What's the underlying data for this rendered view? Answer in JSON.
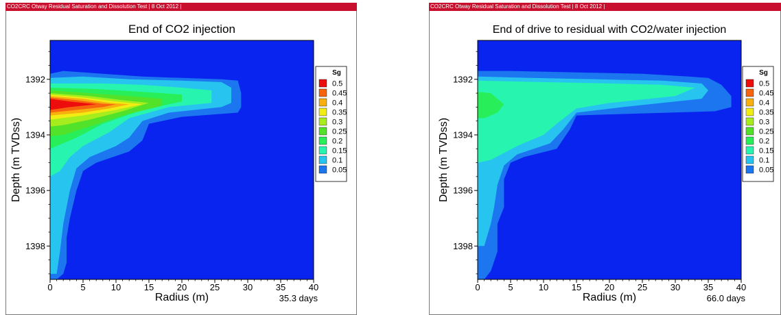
{
  "colors": {
    "header_bar": "#c8102e",
    "background_fill": "#0a24ef",
    "legend_colors": [
      "#ee0d0d",
      "#f76410",
      "#f7b00e",
      "#f1ec14",
      "#a7ec1c",
      "#52e22a",
      "#28ef59",
      "#27f4ae",
      "#28c4f0",
      "#1b76f0",
      "#0a24ef"
    ]
  },
  "panels": [
    {
      "id": "left",
      "header": "CO2CRC Otway Residual Saturation and Dissolution Test | 8 Oct 2012 |",
      "timestamp": "35.3 days"
    },
    {
      "id": "right",
      "header": "CO2CRC Otway Residual Saturation and Dissolution Test | 8 Oct 2012 |",
      "timestamp": "66.0 days"
    }
  ],
  "chart_data": [
    {
      "type": "heatmap",
      "title": "End of CO2 injection",
      "xlabel": "Radius (m)",
      "ylabel": "Depth (m TVDss)",
      "xlim": [
        0,
        40
      ],
      "ylim": [
        1399.2,
        1390.6
      ],
      "x_ticks": [
        0,
        5,
        10,
        15,
        20,
        25,
        30,
        35,
        40
      ],
      "y_ticks": [
        1392,
        1394,
        1396,
        1398
      ],
      "legend_title": "Sg",
      "legend_levels": [
        0.5,
        0.45,
        0.4,
        0.35,
        0.3,
        0.25,
        0.2,
        0.15,
        0.1,
        0.05
      ],
      "grid": false,
      "legend_placement": "right",
      "contours": [
        {
          "level": 0.05,
          "points": [
            [
              0,
              1391.8
            ],
            [
              2,
              1391.7
            ],
            [
              8,
              1391.8
            ],
            [
              14,
              1391.9
            ],
            [
              20,
              1391.95
            ],
            [
              26,
              1392.0
            ],
            [
              28.5,
              1392.05
            ],
            [
              29,
              1392.5
            ],
            [
              29,
              1393.0
            ],
            [
              28.5,
              1393.2
            ],
            [
              20,
              1393.35
            ],
            [
              15,
              1393.6
            ],
            [
              14,
              1394.2
            ],
            [
              12,
              1394.6
            ],
            [
              7,
              1395.0
            ],
            [
              5,
              1395.3
            ],
            [
              4,
              1396.0
            ],
            [
              3,
              1397.0
            ],
            [
              2.5,
              1397.7
            ],
            [
              2.5,
              1398.6
            ],
            [
              2,
              1399.0
            ],
            [
              1,
              1399.2
            ],
            [
              0,
              1399.2
            ]
          ]
        },
        {
          "level": 0.1,
          "points": [
            [
              0,
              1391.95
            ],
            [
              5,
              1391.9
            ],
            [
              12,
              1392.0
            ],
            [
              20,
              1392.05
            ],
            [
              26,
              1392.1
            ],
            [
              27.5,
              1392.3
            ],
            [
              27.5,
              1392.85
            ],
            [
              26,
              1393.0
            ],
            [
              18,
              1393.2
            ],
            [
              14,
              1393.5
            ],
            [
              12,
              1394.1
            ],
            [
              10,
              1394.4
            ],
            [
              6,
              1394.8
            ],
            [
              4,
              1395.2
            ],
            [
              3,
              1396.0
            ],
            [
              2,
              1397.2
            ],
            [
              1.5,
              1398.2
            ],
            [
              1,
              1399.0
            ],
            [
              0,
              1399.0
            ]
          ]
        },
        {
          "level": 0.15,
          "points": [
            [
              0,
              1392.15
            ],
            [
              8,
              1392.15
            ],
            [
              14,
              1392.2
            ],
            [
              20,
              1392.3
            ],
            [
              24.5,
              1392.4
            ],
            [
              24.5,
              1392.85
            ],
            [
              18,
              1393.0
            ],
            [
              12,
              1393.4
            ],
            [
              9,
              1393.9
            ],
            [
              5,
              1394.4
            ],
            [
              3,
              1394.8
            ],
            [
              1.5,
              1395.3
            ],
            [
              0,
              1395.5
            ]
          ]
        },
        {
          "level": 0.2,
          "points": [
            [
              0,
              1392.3
            ],
            [
              7,
              1392.35
            ],
            [
              14,
              1392.45
            ],
            [
              20,
              1392.55
            ],
            [
              20,
              1392.8
            ],
            [
              14,
              1393.1
            ],
            [
              8,
              1393.6
            ],
            [
              4,
              1394.1
            ],
            [
              1,
              1394.4
            ],
            [
              0,
              1394.5
            ]
          ]
        },
        {
          "level": 0.25,
          "points": [
            [
              0,
              1392.4
            ],
            [
              6,
              1392.5
            ],
            [
              12,
              1392.6
            ],
            [
              17,
              1392.7
            ],
            [
              17,
              1392.95
            ],
            [
              11,
              1393.3
            ],
            [
              6,
              1393.7
            ],
            [
              2,
              1394.0
            ],
            [
              0,
              1394.05
            ]
          ]
        },
        {
          "level": 0.3,
          "points": [
            [
              0,
              1392.5
            ],
            [
              6,
              1392.6
            ],
            [
              11,
              1392.75
            ],
            [
              15,
              1392.85
            ],
            [
              11,
              1393.15
            ],
            [
              6,
              1393.45
            ],
            [
              2,
              1393.65
            ],
            [
              0,
              1393.7
            ]
          ]
        },
        {
          "level": 0.35,
          "points": [
            [
              0,
              1392.55
            ],
            [
              5,
              1392.65
            ],
            [
              10,
              1392.8
            ],
            [
              14,
              1392.9
            ],
            [
              10,
              1393.1
            ],
            [
              5,
              1393.3
            ],
            [
              0,
              1393.45
            ]
          ]
        },
        {
          "level": 0.4,
          "points": [
            [
              0,
              1392.6
            ],
            [
              5,
              1392.7
            ],
            [
              9,
              1392.85
            ],
            [
              12,
              1392.9
            ],
            [
              9,
              1393.05
            ],
            [
              5,
              1393.2
            ],
            [
              0,
              1393.3
            ]
          ]
        },
        {
          "level": 0.45,
          "points": [
            [
              0,
              1392.65
            ],
            [
              4,
              1392.75
            ],
            [
              8,
              1392.88
            ],
            [
              10,
              1392.9
            ],
            [
              8,
              1393.0
            ],
            [
              4,
              1393.1
            ],
            [
              0,
              1393.2
            ]
          ]
        },
        {
          "level": 0.5,
          "points": [
            [
              0,
              1392.7
            ],
            [
              3,
              1392.8
            ],
            [
              7,
              1392.9
            ],
            [
              3,
              1393.0
            ],
            [
              0,
              1393.1
            ]
          ]
        }
      ]
    },
    {
      "type": "heatmap",
      "title": "End of drive to residual with CO2/water injection",
      "xlabel": "Radius (m)",
      "ylabel": "Depth (m TVDss)",
      "xlim": [
        0,
        40
      ],
      "ylim": [
        1399.2,
        1390.6
      ],
      "x_ticks": [
        0,
        5,
        10,
        15,
        20,
        25,
        30,
        35,
        40
      ],
      "y_ticks": [
        1392,
        1394,
        1396,
        1398
      ],
      "legend_title": "Sg",
      "legend_levels": [
        0.5,
        0.45,
        0.4,
        0.35,
        0.3,
        0.25,
        0.2,
        0.15,
        0.1,
        0.05
      ],
      "grid": false,
      "legend_placement": "right",
      "contours": [
        {
          "level": 0.05,
          "points": [
            [
              0,
              1391.7
            ],
            [
              5,
              1391.7
            ],
            [
              15,
              1391.75
            ],
            [
              25,
              1391.8
            ],
            [
              32,
              1391.9
            ],
            [
              35,
              1391.95
            ],
            [
              37,
              1392.2
            ],
            [
              38.5,
              1392.6
            ],
            [
              38.5,
              1393.0
            ],
            [
              36,
              1393.15
            ],
            [
              22,
              1393.25
            ],
            [
              15,
              1393.3
            ],
            [
              14,
              1393.8
            ],
            [
              12,
              1394.5
            ],
            [
              7,
              1394.8
            ],
            [
              5,
              1395.0
            ],
            [
              4,
              1395.6
            ],
            [
              4,
              1396.6
            ],
            [
              3,
              1397.2
            ],
            [
              3,
              1398.2
            ],
            [
              2,
              1398.9
            ],
            [
              1,
              1399.2
            ],
            [
              0,
              1399.2
            ]
          ]
        },
        {
          "level": 0.1,
          "points": [
            [
              0,
              1391.9
            ],
            [
              8,
              1391.95
            ],
            [
              18,
              1392.0
            ],
            [
              28,
              1392.05
            ],
            [
              34,
              1392.15
            ],
            [
              35,
              1392.4
            ],
            [
              34,
              1392.7
            ],
            [
              22,
              1393.0
            ],
            [
              15,
              1393.2
            ],
            [
              13,
              1393.8
            ],
            [
              11,
              1394.3
            ],
            [
              6,
              1394.7
            ],
            [
              4,
              1395.1
            ],
            [
              3,
              1395.8
            ],
            [
              2.5,
              1396.6
            ],
            [
              2,
              1397.2
            ],
            [
              1,
              1398.0
            ],
            [
              0,
              1398.0
            ]
          ]
        },
        {
          "level": 0.15,
          "points": [
            [
              0,
              1392.05
            ],
            [
              10,
              1392.1
            ],
            [
              20,
              1392.15
            ],
            [
              28,
              1392.2
            ],
            [
              33,
              1392.3
            ],
            [
              30,
              1392.6
            ],
            [
              20,
              1392.85
            ],
            [
              15,
              1393.05
            ],
            [
              12,
              1393.6
            ],
            [
              10,
              1394.0
            ],
            [
              6,
              1394.4
            ],
            [
              2,
              1394.9
            ],
            [
              0,
              1395.0
            ]
          ]
        },
        {
          "level": 0.2,
          "points": [
            [
              0,
              1392.45
            ],
            [
              2,
              1392.5
            ],
            [
              4,
              1392.9
            ],
            [
              3,
              1393.2
            ],
            [
              1,
              1393.4
            ],
            [
              0,
              1393.4
            ]
          ]
        }
      ]
    }
  ]
}
